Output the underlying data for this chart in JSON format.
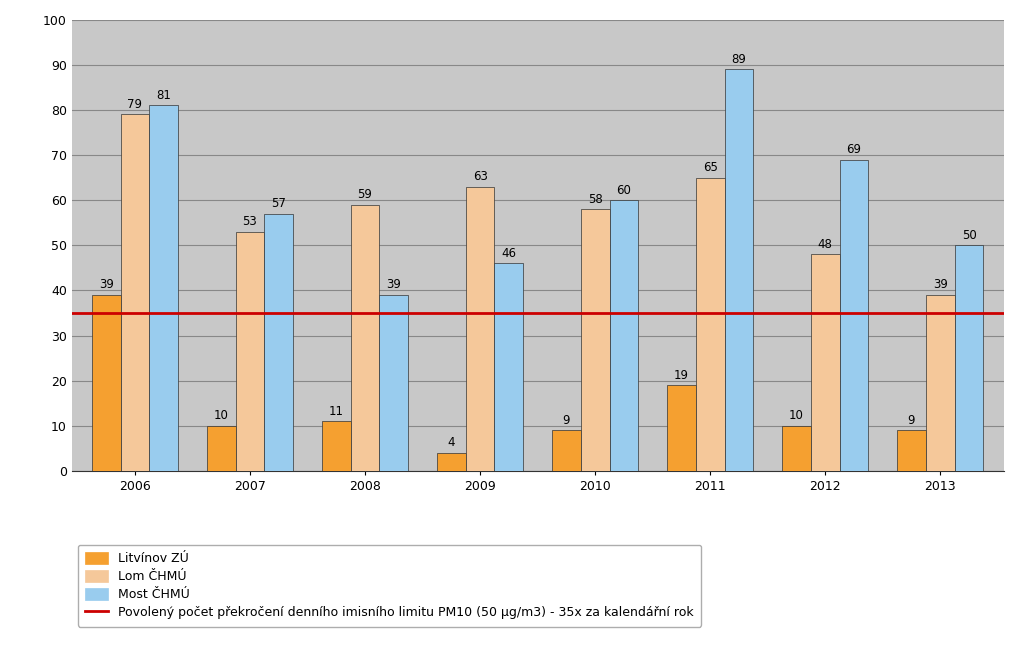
{
  "years": [
    "2006",
    "2007",
    "2008",
    "2009",
    "2010",
    "2011",
    "2012",
    "2013"
  ],
  "litvinov": [
    39,
    10,
    11,
    4,
    9,
    19,
    10,
    9
  ],
  "lom": [
    79,
    53,
    59,
    63,
    58,
    65,
    48,
    39
  ],
  "most": [
    81,
    57,
    39,
    46,
    60,
    89,
    69,
    50
  ],
  "color_litvinov": "#F5A030",
  "color_lom": "#F5C89A",
  "color_most": "#99CCEE",
  "limit_value": 35,
  "limit_color": "#CC0000",
  "ylim": [
    0,
    100
  ],
  "yticks": [
    0,
    10,
    20,
    30,
    40,
    50,
    60,
    70,
    80,
    90,
    100
  ],
  "legend_litvinov": "Litvínov ZÚ",
  "legend_lom": "Lom ČHMÚ",
  "legend_most": "Most ČHMÚ",
  "legend_limit": "Povolený počet překročení denního imisního limitu PM10 (50 μg/m3) - 35x za kalendářní rok",
  "plot_bg_color": "#C8C8C8",
  "figure_bg_color": "#FFFFFF",
  "bar_width": 0.25,
  "label_fontsize": 8.5,
  "tick_fontsize": 9,
  "grid_color": "#888888",
  "bar_edge_color": "#333333",
  "bar_edge_width": 0.5
}
